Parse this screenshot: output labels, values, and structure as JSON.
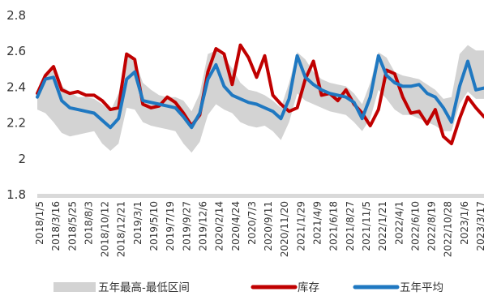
{
  "chart_data": {
    "type": "line",
    "y_ticks": [
      1.8,
      2,
      2.2,
      2.4,
      2.6,
      2.8
    ],
    "y_tick_labels": [
      "1.8",
      "2",
      "2.2",
      "2.4",
      "2.6",
      "2.8"
    ],
    "ylim": [
      1.8,
      2.8
    ],
    "x_tick_labels": [
      "2018/1/5",
      "2018/3/16",
      "2018/5/25",
      "2018/8/3",
      "2018/10/12",
      "2018/12/21",
      "2019/3/1",
      "2019/5/10",
      "2019/7/19",
      "2019/9/27",
      "2019/12/6",
      "2020/2/14",
      "2020/4/24",
      "2020/7/3",
      "2020/9/11",
      "2020/11/20",
      "2021/1/29",
      "2021/4/9",
      "2021/6/18",
      "2021/8/27",
      "2021/11/5",
      "2022/1/21",
      "2022/4/1",
      "2022/6/10",
      "2022/8/19",
      "2022/10/28",
      "2023/1/6",
      "2023/3/17"
    ],
    "legend": {
      "position": "bottom",
      "items": [
        {
          "label": "五年最高-最低区间",
          "color": "#d3d3d3"
        },
        {
          "label": "库存",
          "color": "#c00000"
        },
        {
          "label": "五年平均",
          "color": "#1f78c1"
        }
      ]
    },
    "grid": false,
    "x": [
      "2018/1/5",
      "2018/2/9",
      "2018/3/16",
      "2018/4/20",
      "2018/5/25",
      "2018/6/29",
      "2018/8/3",
      "2018/9/7",
      "2018/10/12",
      "2018/11/16",
      "2018/12/21",
      "2019/1/25",
      "2019/3/1",
      "2019/4/5",
      "2019/5/10",
      "2019/6/14",
      "2019/7/19",
      "2019/8/23",
      "2019/9/27",
      "2019/11/1",
      "2019/12/6",
      "2020/1/10",
      "2020/2/14",
      "2020/3/20",
      "2020/4/24",
      "2020/5/29",
      "2020/7/3",
      "2020/8/7",
      "2020/9/11",
      "2020/10/16",
      "2020/11/20",
      "2020/12/25",
      "2021/1/29",
      "2021/3/5",
      "2021/4/9",
      "2021/5/14",
      "2021/6/18",
      "2021/7/23",
      "2021/8/27",
      "2021/10/1",
      "2021/11/5",
      "2021/12/10",
      "2022/1/21",
      "2022/2/25",
      "2022/4/1",
      "2022/5/6",
      "2022/6/10",
      "2022/7/15",
      "2022/8/19",
      "2022/9/23",
      "2022/10/28",
      "2022/12/2",
      "2023/1/6",
      "2023/2/10",
      "2023/3/17",
      "2023/4/21"
    ],
    "series": [
      {
        "name": "五年最高-最低区间",
        "kind": "band",
        "low": [
          2.27,
          2.25,
          2.2,
          2.14,
          2.12,
          2.13,
          2.14,
          2.15,
          2.08,
          2.04,
          2.08,
          2.28,
          2.27,
          2.2,
          2.18,
          2.17,
          2.16,
          2.15,
          2.08,
          2.03,
          2.09,
          2.24,
          2.3,
          2.27,
          2.25,
          2.2,
          2.18,
          2.17,
          2.18,
          2.15,
          2.1,
          2.2,
          2.36,
          2.32,
          2.3,
          2.28,
          2.26,
          2.25,
          2.24,
          2.2,
          2.15,
          2.22,
          2.38,
          2.33,
          2.27,
          2.24,
          2.24,
          2.22,
          2.2,
          2.18,
          2.15,
          2.15,
          2.3,
          2.37,
          2.33,
          2.33
        ],
        "high": [
          2.38,
          2.45,
          2.49,
          2.4,
          2.37,
          2.34,
          2.34,
          2.33,
          2.3,
          2.26,
          2.36,
          2.57,
          2.55,
          2.42,
          2.38,
          2.35,
          2.34,
          2.34,
          2.32,
          2.26,
          2.36,
          2.58,
          2.6,
          2.56,
          2.5,
          2.42,
          2.38,
          2.37,
          2.35,
          2.32,
          2.28,
          2.42,
          2.59,
          2.55,
          2.48,
          2.44,
          2.42,
          2.41,
          2.4,
          2.36,
          2.3,
          2.42,
          2.59,
          2.56,
          2.48,
          2.46,
          2.45,
          2.44,
          2.41,
          2.38,
          2.33,
          2.34,
          2.58,
          2.63,
          2.6,
          2.6
        ]
      },
      {
        "name": "库存",
        "kind": "line",
        "color": "#c00000",
        "values": [
          2.36,
          2.46,
          2.51,
          2.38,
          2.36,
          2.37,
          2.35,
          2.35,
          2.32,
          2.27,
          2.28,
          2.58,
          2.55,
          2.3,
          2.28,
          2.29,
          2.34,
          2.31,
          2.25,
          2.18,
          2.24,
          2.48,
          2.61,
          2.58,
          2.41,
          2.63,
          2.56,
          2.45,
          2.57,
          2.35,
          2.3,
          2.26,
          2.28,
          2.44,
          2.54,
          2.35,
          2.36,
          2.32,
          2.38,
          2.3,
          2.25,
          2.18,
          2.27,
          2.49,
          2.47,
          2.34,
          2.25,
          2.26,
          2.19,
          2.27,
          2.12,
          2.08,
          2.22,
          2.34,
          2.28,
          2.23
        ]
      },
      {
        "name": "五年平均",
        "kind": "line",
        "color": "#1f78c1",
        "values": [
          2.34,
          2.44,
          2.45,
          2.32,
          2.28,
          2.27,
          2.26,
          2.25,
          2.21,
          2.17,
          2.22,
          2.44,
          2.48,
          2.32,
          2.31,
          2.3,
          2.29,
          2.28,
          2.23,
          2.17,
          2.25,
          2.44,
          2.52,
          2.4,
          2.35,
          2.33,
          2.31,
          2.3,
          2.28,
          2.26,
          2.22,
          2.33,
          2.57,
          2.45,
          2.41,
          2.38,
          2.36,
          2.35,
          2.34,
          2.31,
          2.22,
          2.34,
          2.57,
          2.46,
          2.42,
          2.4,
          2.4,
          2.41,
          2.36,
          2.34,
          2.28,
          2.2,
          2.4,
          2.54,
          2.38,
          2.39
        ]
      }
    ]
  }
}
